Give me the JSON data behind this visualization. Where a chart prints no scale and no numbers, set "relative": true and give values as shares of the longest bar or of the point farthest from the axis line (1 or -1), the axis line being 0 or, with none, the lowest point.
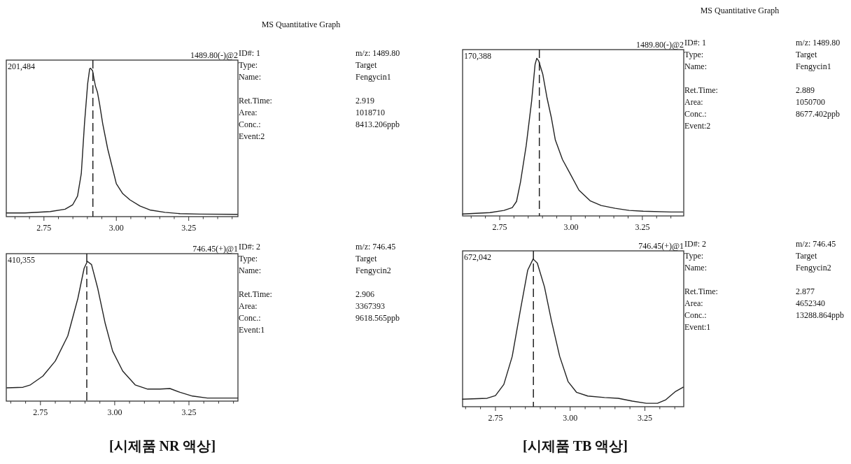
{
  "chart_data": [
    {
      "type": "line",
      "relative": true,
      "tick_labels": "x",
      "color": "#222222",
      "line_style": "solid",
      "x": [
        2.621,
        2.685,
        2.772,
        2.823,
        2.849,
        2.866,
        2.879,
        2.89,
        2.901,
        2.908,
        2.911,
        2.918,
        2.923,
        2.928,
        2.935,
        2.942,
        2.953,
        2.97,
        3.0,
        3.022,
        3.047,
        3.082,
        3.116,
        3.168,
        3.22,
        3.289,
        3.418
      ],
      "values": [
        0.025,
        0.025,
        0.034,
        0.05,
        0.079,
        0.138,
        0.29,
        0.626,
        0.896,
        0.997,
        1.0,
        0.983,
        0.929,
        0.879,
        0.837,
        0.761,
        0.626,
        0.458,
        0.222,
        0.155,
        0.113,
        0.071,
        0.045,
        0.029,
        0.02,
        0.017,
        0.015
      ],
      "xlim": [
        2.62,
        3.42
      ],
      "xticks": [
        {
          "value": 2.65,
          "label": null
        },
        {
          "value": 2.7,
          "label": null
        },
        {
          "value": 2.75,
          "label": "2.75"
        },
        {
          "value": 2.8,
          "label": null
        },
        {
          "value": 2.85,
          "label": null
        },
        {
          "value": 2.9,
          "label": null
        },
        {
          "value": 2.95,
          "label": null
        },
        {
          "value": 3.0,
          "label": "3.00"
        },
        {
          "value": 3.05,
          "label": null
        },
        {
          "value": 3.1,
          "label": null
        },
        {
          "value": 3.15,
          "label": null
        },
        {
          "value": 3.2,
          "label": null
        },
        {
          "value": 3.25,
          "label": "3.25"
        },
        {
          "value": 3.3,
          "label": null
        },
        {
          "value": 3.35,
          "label": null
        },
        {
          "value": 3.4,
          "label": null
        }
      ],
      "ref_lines": [
        {
          "axis": "x",
          "value": 2.919,
          "line_style": "dashed",
          "color": "#222222"
        }
      ],
      "annotations": [
        "201,484",
        "1489.80(-)@2",
        "ID#: 1",
        "m/z: 1489.80",
        "Type:",
        "Target",
        "Name:",
        "Fengycin1",
        "Ret.Time:",
        "2.919",
        "Area:",
        "1018710",
        "Conc.:",
        "8413.206ppb",
        "Event:2",
        "MS Quantitative Graph"
      ]
    },
    {
      "type": "line",
      "relative": true,
      "tick_labels": "x",
      "color": "#222222",
      "line_style": "solid",
      "x": [
        2.637,
        2.691,
        2.716,
        2.758,
        2.8,
        2.842,
        2.876,
        2.897,
        2.908,
        2.922,
        2.943,
        2.968,
        2.993,
        3.027,
        3.069,
        3.111,
        3.153,
        3.186,
        3.22,
        3.262,
        3.312,
        3.414
      ],
      "values": [
        0.095,
        0.099,
        0.116,
        0.179,
        0.287,
        0.466,
        0.735,
        0.95,
        1.0,
        0.977,
        0.806,
        0.556,
        0.358,
        0.215,
        0.116,
        0.086,
        0.086,
        0.09,
        0.063,
        0.036,
        0.022,
        0.022
      ],
      "xlim": [
        2.635,
        3.415
      ],
      "xticks": [
        {
          "value": 2.65,
          "label": null
        },
        {
          "value": 2.7,
          "label": null
        },
        {
          "value": 2.75,
          "label": "2.75"
        },
        {
          "value": 2.8,
          "label": null
        },
        {
          "value": 2.85,
          "label": null
        },
        {
          "value": 2.9,
          "label": null
        },
        {
          "value": 2.95,
          "label": null
        },
        {
          "value": 3.0,
          "label": "3.00"
        },
        {
          "value": 3.05,
          "label": null
        },
        {
          "value": 3.1,
          "label": null
        },
        {
          "value": 3.15,
          "label": null
        },
        {
          "value": 3.2,
          "label": null
        },
        {
          "value": 3.25,
          "label": "3.25"
        },
        {
          "value": 3.3,
          "label": null
        },
        {
          "value": 3.35,
          "label": null
        },
        {
          "value": 3.4,
          "label": null
        }
      ],
      "ref_lines": [
        {
          "axis": "x",
          "value": 2.906,
          "line_style": "dashed",
          "color": "#222222"
        }
      ],
      "annotations": [
        "410,355",
        "746.45(+)@1",
        "ID#: 2",
        "m/z: 746.45",
        "Type:",
        "Target",
        "Name:",
        "Fengycin2",
        "Ret.Time:",
        "2.906",
        "Area:",
        "3367393",
        "Conc.:",
        "9618.565ppb",
        "Event:1",
        "[시제품 NR 액상]"
      ]
    },
    {
      "type": "line",
      "relative": true,
      "tick_labels": "x",
      "color": "#222222",
      "line_style": "solid",
      "x": [
        2.62,
        2.716,
        2.765,
        2.794,
        2.809,
        2.823,
        2.843,
        2.862,
        2.874,
        2.88,
        2.887,
        2.901,
        2.916,
        2.931,
        2.945,
        2.97,
        2.999,
        3.028,
        3.067,
        3.106,
        3.155,
        3.204,
        3.253,
        3.351,
        3.392
      ],
      "values": [
        0.012,
        0.021,
        0.035,
        0.053,
        0.092,
        0.216,
        0.447,
        0.73,
        0.961,
        1.0,
        0.982,
        0.899,
        0.748,
        0.624,
        0.482,
        0.358,
        0.261,
        0.163,
        0.096,
        0.066,
        0.048,
        0.035,
        0.03,
        0.025,
        0.025
      ],
      "xlim": [
        2.62,
        3.395
      ],
      "xticks": [
        {
          "value": 2.65,
          "label": null
        },
        {
          "value": 2.7,
          "label": null
        },
        {
          "value": 2.75,
          "label": "2.75"
        },
        {
          "value": 2.8,
          "label": null
        },
        {
          "value": 2.85,
          "label": null
        },
        {
          "value": 2.9,
          "label": null
        },
        {
          "value": 2.95,
          "label": null
        },
        {
          "value": 3.0,
          "label": "3.00"
        },
        {
          "value": 3.05,
          "label": null
        },
        {
          "value": 3.1,
          "label": null
        },
        {
          "value": 3.15,
          "label": null
        },
        {
          "value": 3.2,
          "label": null
        },
        {
          "value": 3.25,
          "label": "3.25"
        },
        {
          "value": 3.3,
          "label": null
        },
        {
          "value": 3.35,
          "label": null
        }
      ],
      "ref_lines": [
        {
          "axis": "x",
          "value": 2.889,
          "line_style": "dashed",
          "color": "#222222"
        }
      ],
      "annotations": [
        "170,388",
        "1489.80(-)@2",
        "ID#: 1",
        "m/z: 1489.80",
        "Type:",
        "Target",
        "Name:",
        "Fengycin1",
        "Ret.Time:",
        "2.889",
        "Area:",
        "1050700",
        "Conc.:",
        "8677.402ppb",
        "Event:2",
        "MS Quantitative Graph"
      ]
    },
    {
      "type": "line",
      "relative": true,
      "tick_labels": "x",
      "color": "#222222",
      "line_style": "solid",
      "x": [
        2.64,
        2.722,
        2.75,
        2.778,
        2.806,
        2.834,
        2.858,
        2.876,
        2.89,
        2.914,
        2.937,
        2.965,
        2.993,
        3.021,
        3.059,
        3.115,
        3.161,
        3.208,
        3.255,
        3.292,
        3.32,
        3.353,
        3.378
      ],
      "values": [
        0.051,
        0.057,
        0.075,
        0.151,
        0.34,
        0.66,
        0.925,
        1.0,
        0.972,
        0.811,
        0.585,
        0.34,
        0.17,
        0.098,
        0.072,
        0.062,
        0.057,
        0.038,
        0.023,
        0.023,
        0.047,
        0.104,
        0.132
      ],
      "xlim": [
        2.64,
        3.38
      ],
      "xticks": [
        {
          "value": 2.65,
          "label": null
        },
        {
          "value": 2.7,
          "label": null
        },
        {
          "value": 2.75,
          "label": "2.75"
        },
        {
          "value": 2.8,
          "label": null
        },
        {
          "value": 2.85,
          "label": null
        },
        {
          "value": 2.9,
          "label": null
        },
        {
          "value": 2.95,
          "label": null
        },
        {
          "value": 3.0,
          "label": "3.00"
        },
        {
          "value": 3.05,
          "label": null
        },
        {
          "value": 3.1,
          "label": null
        },
        {
          "value": 3.15,
          "label": null
        },
        {
          "value": 3.2,
          "label": null
        },
        {
          "value": 3.25,
          "label": "3.25"
        },
        {
          "value": 3.3,
          "label": null
        },
        {
          "value": 3.35,
          "label": null
        }
      ],
      "ref_lines": [
        {
          "axis": "x",
          "value": 2.877,
          "line_style": "dashed",
          "color": "#222222"
        }
      ],
      "annotations": [
        "672,042",
        "746.45(+)@1",
        "ID#: 2",
        "m/z: 746.45",
        "Type:",
        "Target",
        "Name:",
        "Fengycin2",
        "Ret.Time:",
        "2.877",
        "Area:",
        "4652340",
        "Conc.:",
        "13288.864ppb",
        "Event:1",
        "[시제품 TB 액상]"
      ]
    }
  ]
}
